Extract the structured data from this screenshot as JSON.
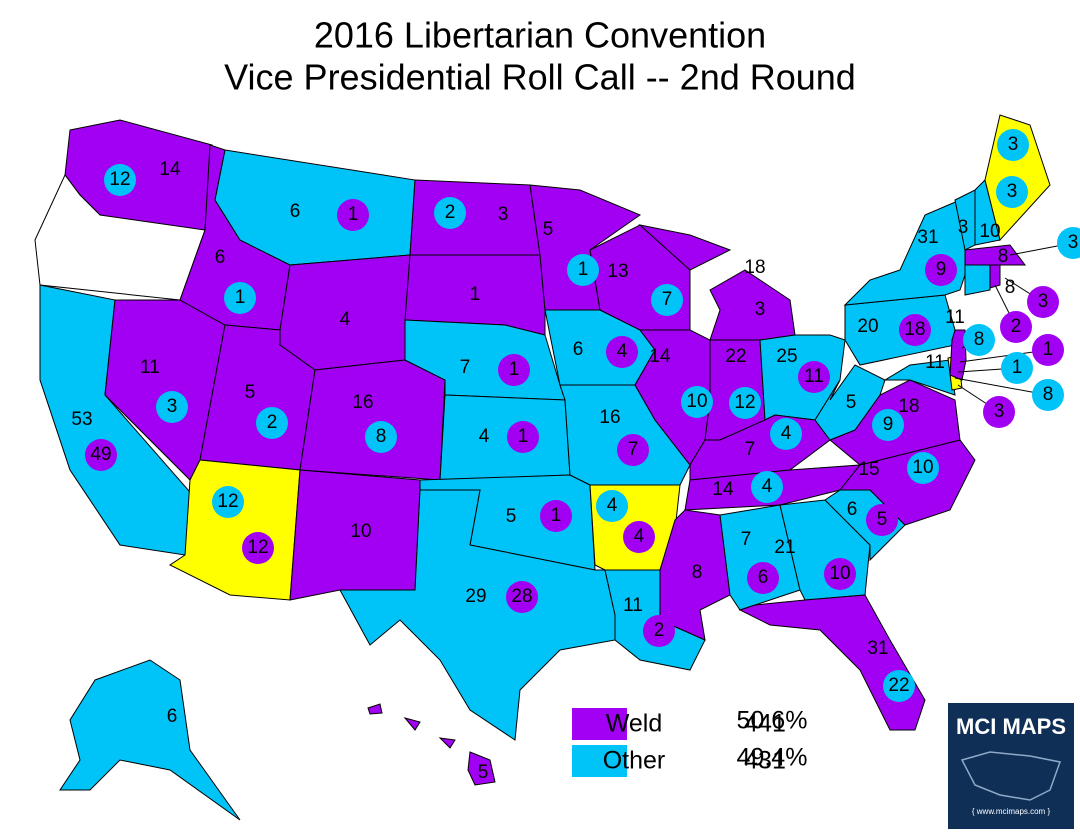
{
  "title": [
    "2016 Libertarian Convention",
    "Vice Presidential Roll Call -- 2nd Round"
  ],
  "colors": {
    "weld": "#a100f2",
    "other": "#00c3f7",
    "tie": "#ffff00",
    "none": "#ffffff"
  },
  "legend": [
    {
      "label": "Weld",
      "delegates": 441,
      "percent": "50.6%",
      "color": "#a100f2"
    },
    {
      "label": "Other",
      "delegates": 431,
      "percent": "49.4%",
      "color": "#00c3f7"
    }
  ],
  "state_labels": [
    14,
    6,
    3,
    5,
    6,
    1,
    4,
    13,
    18,
    31,
    3,
    10,
    8,
    8,
    20,
    11,
    11,
    7,
    6,
    14,
    22,
    25,
    11,
    5,
    16,
    53,
    16,
    4,
    7,
    5,
    18,
    15,
    14,
    6,
    5,
    10,
    7,
    21,
    8,
    29,
    11,
    31,
    6,
    5
  ],
  "circle_labels": [
    {
      "value": 12,
      "color": "#00c3f7"
    },
    {
      "value": 1,
      "color": "#a100f2"
    },
    {
      "value": 2,
      "color": "#00c3f7"
    },
    {
      "value": 3,
      "color": "#00c3f7"
    },
    {
      "value": 1,
      "color": "#00c3f7"
    },
    {
      "value": 1,
      "color": "#00c3f7"
    },
    {
      "value": 7,
      "color": "#00c3f7"
    },
    {
      "value": 3,
      "color": "#a100f2"
    },
    {
      "value": 3,
      "color": "#00c3f7"
    },
    {
      "value": 9,
      "color": "#a100f2"
    },
    {
      "value": 3,
      "color": "#00c3f7"
    },
    {
      "value": 3,
      "color": "#a100f2"
    },
    {
      "value": 2,
      "color": "#a100f2"
    },
    {
      "value": 18,
      "color": "#a100f2"
    },
    {
      "value": 8,
      "color": "#00c3f7"
    },
    {
      "value": 1,
      "color": "#a100f2"
    },
    {
      "value": 1,
      "color": "#00c3f7"
    },
    {
      "value": 8,
      "color": "#00c3f7"
    },
    {
      "value": 3,
      "color": "#a100f2"
    },
    {
      "value": 4,
      "color": "#a100f2"
    },
    {
      "value": 1,
      "color": "#a100f2"
    },
    {
      "value": 11,
      "color": "#a100f2"
    },
    {
      "value": 10,
      "color": "#00c3f7"
    },
    {
      "value": 12,
      "color": "#00c3f7"
    },
    {
      "value": 3,
      "color": "#00c3f7"
    },
    {
      "value": 2,
      "color": "#00c3f7"
    },
    {
      "value": 8,
      "color": "#00c3f7"
    },
    {
      "value": 49,
      "color": "#a100f2"
    },
    {
      "value": 1,
      "color": "#a100f2"
    },
    {
      "value": 7,
      "color": "#a100f2"
    },
    {
      "value": 4,
      "color": "#00c3f7"
    },
    {
      "value": 9,
      "color": "#00c3f7"
    },
    {
      "value": 10,
      "color": "#00c3f7"
    },
    {
      "value": 4,
      "color": "#00c3f7"
    },
    {
      "value": 12,
      "color": "#00c3f7"
    },
    {
      "value": 12,
      "color": "#a100f2"
    },
    {
      "value": 1,
      "color": "#a100f2"
    },
    {
      "value": 4,
      "color": "#00c3f7"
    },
    {
      "value": 4,
      "color": "#a100f2"
    },
    {
      "value": 5,
      "color": "#a100f2"
    },
    {
      "value": 6,
      "color": "#a100f2"
    },
    {
      "value": 10,
      "color": "#a100f2"
    },
    {
      "value": 28,
      "color": "#a100f2"
    },
    {
      "value": 2,
      "color": "#a100f2"
    },
    {
      "value": 22,
      "color": "#00c3f7"
    }
  ],
  "logo": {
    "title": "MCI MAPS",
    "url": "{ www.mcimaps.com }"
  }
}
